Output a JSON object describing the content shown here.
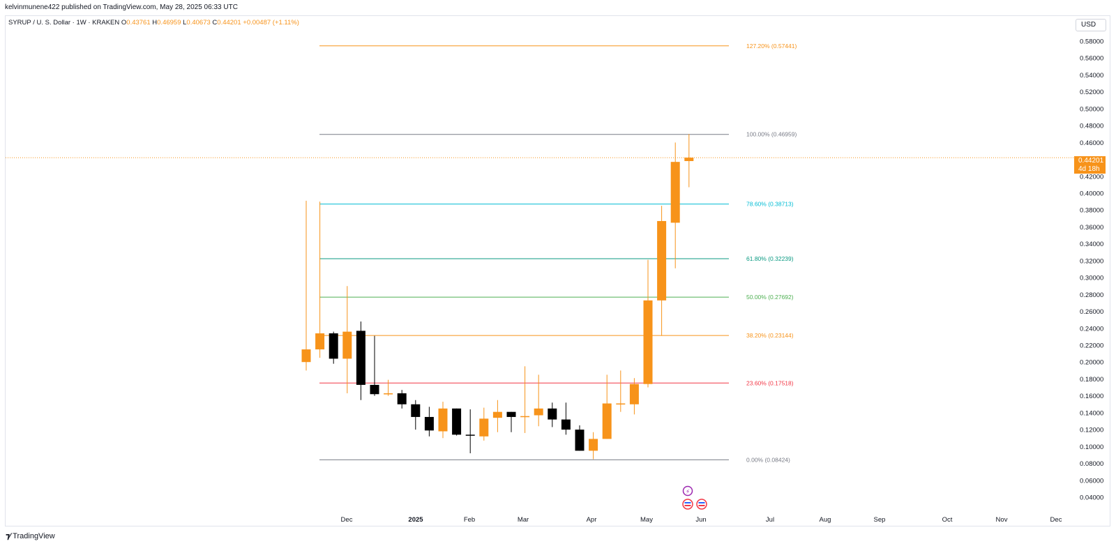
{
  "header": {
    "published_by": "kelvinmunene422 published on TradingView.com, May 28, 2025 06:33 UTC",
    "symbol": "SYRUP / U. S. Dollar · 1W · KRAKEN",
    "ohlc": {
      "o_label": "O",
      "o": "0.43761",
      "h_label": "H",
      "h": "0.46959",
      "l_label": "L",
      "l": "0.40673",
      "c_label": "C",
      "c": "0.44201",
      "change": "+0.00487 (+1.11%)"
    },
    "currency": "USD"
  },
  "footer": {
    "brand": "TradingView"
  },
  "last_price": {
    "price": "0.44201",
    "countdown": "4d 18h"
  },
  "colors": {
    "up": "#f7931a",
    "down": "#000000",
    "fib_0": "#787b86",
    "fib_236": "#f23645",
    "fib_382": "#f7931a",
    "fib_50": "#4caf50",
    "fib_618": "#089981",
    "fib_786": "#00bcd4",
    "fib_100": "#787b86",
    "fib_1272": "#f7931a"
  },
  "chart_data": {
    "type": "candlestick",
    "interval": "1W",
    "y_axis": {
      "min": 0.04,
      "max": 0.58,
      "ticks": [
        "0.58000",
        "0.56000",
        "0.54000",
        "0.52000",
        "0.50000",
        "0.48000",
        "0.46000",
        "0.44000",
        "0.42000",
        "0.40000",
        "0.38000",
        "0.36000",
        "0.34000",
        "0.32000",
        "0.30000",
        "0.28000",
        "0.26000",
        "0.24000",
        "0.22000",
        "0.20000",
        "0.18000",
        "0.16000",
        "0.14000",
        "0.12000",
        "0.10000",
        "0.08000",
        "0.06000",
        "0.04000"
      ]
    },
    "x_axis": {
      "labels": [
        "Dec",
        "2025",
        "Feb",
        "Mar",
        "Apr",
        "May",
        "Jun",
        "Jul",
        "Aug",
        "Sep",
        "Oct",
        "Nov",
        "Dec"
      ]
    },
    "candles": [
      {
        "o": 0.2,
        "h": 0.391,
        "l": 0.19,
        "c": 0.215
      },
      {
        "o": 0.215,
        "h": 0.39,
        "l": 0.205,
        "c": 0.234
      },
      {
        "o": 0.234,
        "h": 0.236,
        "l": 0.198,
        "c": 0.204
      },
      {
        "o": 0.204,
        "h": 0.29,
        "l": 0.163,
        "c": 0.236
      },
      {
        "o": 0.237,
        "h": 0.248,
        "l": 0.155,
        "c": 0.173
      },
      {
        "o": 0.173,
        "h": 0.231,
        "l": 0.16,
        "c": 0.162
      },
      {
        "o": 0.162,
        "h": 0.179,
        "l": 0.16,
        "c": 0.163
      },
      {
        "o": 0.163,
        "h": 0.167,
        "l": 0.145,
        "c": 0.15
      },
      {
        "o": 0.15,
        "h": 0.155,
        "l": 0.12,
        "c": 0.135
      },
      {
        "o": 0.135,
        "h": 0.147,
        "l": 0.112,
        "c": 0.119
      },
      {
        "o": 0.118,
        "h": 0.153,
        "l": 0.11,
        "c": 0.145
      },
      {
        "o": 0.145,
        "h": 0.145,
        "l": 0.113,
        "c": 0.114
      },
      {
        "o": 0.114,
        "h": 0.144,
        "l": 0.092,
        "c": 0.113
      },
      {
        "o": 0.112,
        "h": 0.146,
        "l": 0.107,
        "c": 0.133
      },
      {
        "o": 0.134,
        "h": 0.155,
        "l": 0.117,
        "c": 0.141
      },
      {
        "o": 0.141,
        "h": 0.141,
        "l": 0.117,
        "c": 0.135
      },
      {
        "o": 0.135,
        "h": 0.195,
        "l": 0.116,
        "c": 0.136
      },
      {
        "o": 0.137,
        "h": 0.185,
        "l": 0.124,
        "c": 0.145
      },
      {
        "o": 0.145,
        "h": 0.152,
        "l": 0.123,
        "c": 0.132
      },
      {
        "o": 0.132,
        "h": 0.152,
        "l": 0.114,
        "c": 0.12
      },
      {
        "o": 0.12,
        "h": 0.125,
        "l": 0.095,
        "c": 0.095
      },
      {
        "o": 0.095,
        "h": 0.117,
        "l": 0.085,
        "c": 0.109
      },
      {
        "o": 0.109,
        "h": 0.185,
        "l": 0.109,
        "c": 0.151
      },
      {
        "o": 0.151,
        "h": 0.19,
        "l": 0.141,
        "c": 0.151
      },
      {
        "o": 0.15,
        "h": 0.181,
        "l": 0.138,
        "c": 0.174
      },
      {
        "o": 0.174,
        "h": 0.321,
        "l": 0.17,
        "c": 0.273
      },
      {
        "o": 0.273,
        "h": 0.385,
        "l": 0.231,
        "c": 0.367
      },
      {
        "o": 0.365,
        "h": 0.46,
        "l": 0.311,
        "c": 0.437
      },
      {
        "o": 0.438,
        "h": 0.47,
        "l": 0.407,
        "c": 0.442
      }
    ],
    "fibonacci": [
      {
        "level": "127.20%",
        "price": 0.57441,
        "label": "127.20% (0.57441)",
        "color_key": "fib_1272"
      },
      {
        "level": "100.00%",
        "price": 0.46959,
        "label": "100.00% (0.46959)",
        "color_key": "fib_100"
      },
      {
        "level": "78.60%",
        "price": 0.38713,
        "label": "78.60% (0.38713)",
        "color_key": "fib_786"
      },
      {
        "level": "61.80%",
        "price": 0.32239,
        "label": "61.80% (0.32239)",
        "color_key": "fib_618"
      },
      {
        "level": "50.00%",
        "price": 0.27692,
        "label": "50.00% (0.27692)",
        "color_key": "fib_50"
      },
      {
        "level": "38.20%",
        "price": 0.23144,
        "label": "38.20% (0.23144)",
        "color_key": "fib_382"
      },
      {
        "level": "23.60%",
        "price": 0.17518,
        "label": "23.60% (0.17518)",
        "color_key": "fib_236"
      },
      {
        "level": "0.00%",
        "price": 0.08424,
        "label": "0.00% (0.08424)",
        "color_key": "fib_0"
      }
    ],
    "grid": false,
    "current_price": 0.44201
  }
}
